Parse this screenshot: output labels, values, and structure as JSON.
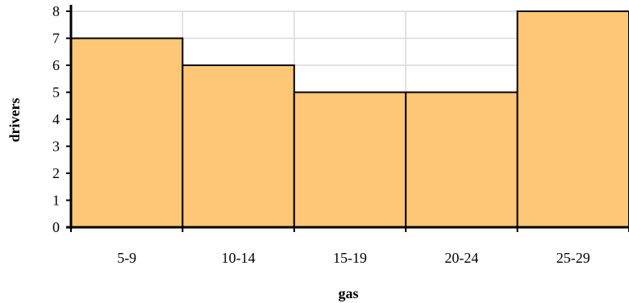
{
  "chart_data": {
    "type": "bar",
    "title": "",
    "xlabel": "gas",
    "ylabel": "drivers",
    "categories": [
      "5-9",
      "10-14",
      "15-19",
      "20-24",
      "25-29"
    ],
    "values": [
      7,
      6,
      5,
      5,
      8
    ],
    "ylim": [
      0,
      8
    ],
    "yticks": [
      "0",
      "1",
      "2",
      "3",
      "4",
      "5",
      "6",
      "7",
      "8"
    ],
    "grid": true,
    "legend": "none",
    "bar_color": "#fdc776",
    "bar_edge_color": "#000000",
    "grid_color": "#d9d9d9"
  }
}
